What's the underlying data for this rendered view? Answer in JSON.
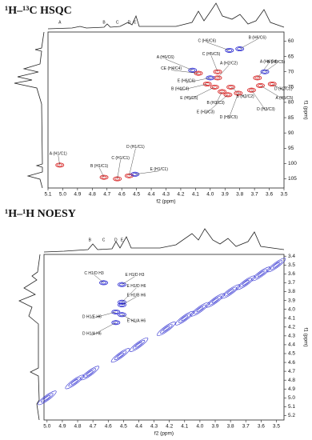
{
  "chart_data": [
    {
      "type": "contour",
      "title": "¹H–¹³C HSQC",
      "x_label": "f2 (ppm)",
      "y_label": "f1 (ppm)",
      "xlim": [
        5.1,
        3.5
      ],
      "xticks": [
        5.1,
        {
          "value": 5,
          "label": "5.0"
        },
        4.9,
        4.8,
        4.7,
        4.6,
        4.5,
        4.4,
        4.3,
        4.2,
        4.1,
        {
          "value": 4,
          "label": "4.0"
        },
        3.9,
        3.8,
        3.7,
        3.6,
        3.5
      ],
      "ylim": [
        57,
        108
      ],
      "yticks": [
        60,
        65,
        70,
        75,
        80,
        85,
        90,
        95,
        100,
        105
      ],
      "trace_labels": [
        {
          "label": "A",
          "x": 5.02
        },
        {
          "label": "B",
          "x": 4.72
        },
        {
          "label": "C",
          "x": 4.63
        },
        {
          "label": "D",
          "x": 4.55
        },
        {
          "label": "E",
          "x": 4.51
        }
      ],
      "peaks": [
        {
          "label": "A (H1/C1)",
          "x": 5.02,
          "y": 100.5,
          "color": "#d62020"
        },
        {
          "label": "B (H1/C1)",
          "x": 4.72,
          "y": 104.5,
          "color": "#d62020"
        },
        {
          "label": "C (H1/C1)",
          "x": 4.63,
          "y": 105,
          "color": "#d62020"
        },
        {
          "label": "D (H1/C1)",
          "x": 4.55,
          "y": 104,
          "color": "#d62020"
        },
        {
          "label": "E (H1/C1)",
          "x": 4.51,
          "y": 103.5,
          "color": "#2a2ad0"
        },
        {
          "label": "C (H6/C6)",
          "x": 3.87,
          "y": 63,
          "color": "#2a2ad0"
        },
        {
          "label": "B (H6/C6)",
          "x": 3.8,
          "y": 62.5,
          "color": "#2a2ad0"
        },
        {
          "label": "A (H6/C6)",
          "x": 4.12,
          "y": 69.5,
          "color": "#2a2ad0"
        },
        {
          "label": "CE (H4/C4)",
          "x": 4.08,
          "y": 70.5,
          "color": "#d62020"
        },
        {
          "label": "C (H5/C5)",
          "x": 3.95,
          "y": 70,
          "color": "#d62020"
        },
        {
          "label": "A (H2/C2)",
          "x": 3.95,
          "y": 72,
          "color": "#d62020"
        },
        {
          "label": "A (H4/C4)",
          "x": 3.68,
          "y": 72,
          "color": "#d62020"
        },
        {
          "label": "B (H5/C5)",
          "x": 3.63,
          "y": 70,
          "color": "#2a2ad0"
        },
        {
          "label": "E (H6/C6)",
          "x": 4.0,
          "y": 72,
          "color": "#2a2ad0"
        },
        {
          "label": "B (H4/C4)",
          "x": 4.02,
          "y": 74,
          "color": "#d62020"
        },
        {
          "label": "D (H2/C2)",
          "x": 3.58,
          "y": 74,
          "color": "#d62020"
        },
        {
          "label": "E (H5/C5)",
          "x": 3.97,
          "y": 75,
          "color": "#d62020"
        },
        {
          "label": "B (H2/C2)",
          "x": 3.86,
          "y": 75,
          "color": "#d62020"
        },
        {
          "label": "A (H5/C5)",
          "x": 3.66,
          "y": 74.5,
          "color": "#d62020"
        },
        {
          "label": "B (H3/C3)",
          "x": 3.92,
          "y": 76.5,
          "color": "#d62020"
        },
        {
          "label": "D (H3/C3)",
          "x": 3.72,
          "y": 76,
          "color": "#d62020"
        },
        {
          "label": "E (H3/C3)",
          "x": 3.88,
          "y": 77.5,
          "color": "#d62020"
        },
        {
          "label": "D (H5/C5)",
          "x": 3.81,
          "y": 77,
          "color": "#d62020"
        }
      ]
    },
    {
      "type": "contour",
      "title": "¹H–¹H NOESY",
      "x_label": "f2 (ppm)",
      "y_label": "f1 (ppm)",
      "xlim": [
        5.02,
        3.45
      ],
      "xticks": [
        {
          "value": 5,
          "label": "5.0"
        },
        4.9,
        4.8,
        4.7,
        4.6,
        4.5,
        4.4,
        4.3,
        4.2,
        4.1,
        {
          "value": 4,
          "label": "4.0"
        },
        3.9,
        3.8,
        3.7,
        3.6,
        3.5
      ],
      "ylim": [
        3.38,
        5.25
      ],
      "yticks": [
        3.4,
        3.5,
        3.6,
        3.7,
        3.8,
        3.9,
        {
          "value": 4,
          "label": "4.0"
        },
        4.1,
        4.2,
        4.3,
        4.4,
        4.5,
        4.6,
        4.7,
        4.8,
        4.9,
        {
          "value": 5,
          "label": "5.0"
        },
        5.1,
        5.2
      ],
      "trace_labels": [
        {
          "label": "B",
          "x": 4.72
        },
        {
          "label": "C",
          "x": 4.63
        },
        {
          "label": "D",
          "x": 4.55
        },
        {
          "label": "E",
          "x": 4.51
        }
      ],
      "peaks": [
        {
          "label": "C H1/D H3",
          "x": 4.63,
          "y": 3.7,
          "color": "#2a2ad0"
        },
        {
          "label": "E H1/D H3",
          "x": 4.51,
          "y": 3.72,
          "color": "#2a2ad0"
        },
        {
          "label": "E H1/D H6",
          "x": 4.51,
          "y": 3.92,
          "color": "#2a2ad0"
        },
        {
          "label": "E H1/B H6",
          "x": 4.51,
          "y": 3.95,
          "color": "#2a2ad0"
        },
        {
          "label": "D H1/E H6",
          "x": 4.55,
          "y": 4.03,
          "color": "#2a2ad0"
        },
        {
          "label": "E H1/A H6",
          "x": 4.51,
          "y": 4.06,
          "color": "#2a2ad0"
        },
        {
          "label": "D H1/A H6",
          "x": 4.55,
          "y": 4.15,
          "color": "#2a2ad0"
        }
      ],
      "diagonal_color": "#2a2ad0",
      "diagonal_peaks": {
        "x": [
          5.0,
          4.82,
          4.72,
          4.52,
          4.4,
          4.22,
          4.1,
          4.0,
          3.9,
          3.8,
          3.7,
          3.6,
          3.5
        ],
        "y": [
          5.0,
          4.82,
          4.72,
          4.52,
          4.4,
          4.22,
          4.1,
          4.0,
          3.9,
          3.8,
          3.7,
          3.6,
          3.5
        ]
      }
    }
  ]
}
